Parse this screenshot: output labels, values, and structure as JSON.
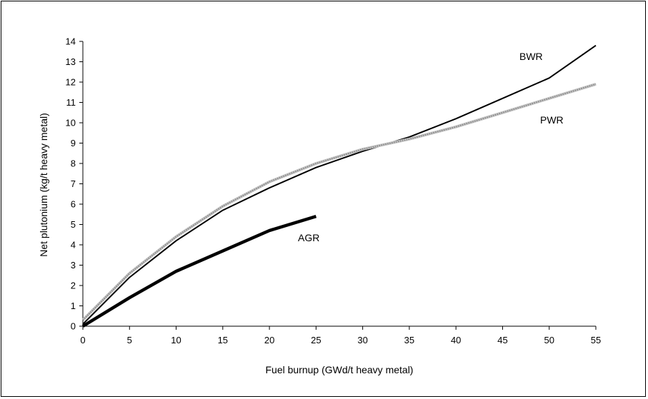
{
  "chart_data": {
    "type": "line",
    "xlabel": "Fuel burnup (GWd/t heavy metal)",
    "ylabel": "Net plutonium (kg/t heavy metal)",
    "xlim": [
      0,
      55
    ],
    "ylim": [
      0,
      14
    ],
    "xticks": [
      "0",
      "5",
      "10",
      "15",
      "20",
      "25",
      "30",
      "35",
      "40",
      "45",
      "50",
      "55"
    ],
    "yticks": [
      "0",
      "1",
      "2",
      "3",
      "4",
      "5",
      "6",
      "7",
      "8",
      "9",
      "10",
      "11",
      "12",
      "13",
      "14"
    ],
    "grid": false,
    "legend": "none",
    "series": [
      {
        "name": "BWR",
        "style": "solid",
        "color": "#000000",
        "x": [
          0,
          5,
          10,
          15,
          20,
          25,
          30,
          35,
          40,
          45,
          50,
          55
        ],
        "y": [
          0.1,
          2.4,
          4.2,
          5.7,
          6.8,
          7.8,
          8.6,
          9.3,
          10.2,
          11.2,
          12.2,
          13.8
        ]
      },
      {
        "name": "PWR",
        "style": "dotted",
        "color": "#888888",
        "x": [
          0,
          5,
          10,
          15,
          20,
          25,
          30,
          35,
          40,
          45,
          50,
          55
        ],
        "y": [
          0.3,
          2.6,
          4.4,
          5.9,
          7.1,
          8.0,
          8.7,
          9.2,
          9.8,
          10.5,
          11.2,
          11.9
        ]
      },
      {
        "name": "AGR",
        "style": "thick",
        "color": "#000000",
        "x": [
          0,
          5,
          10,
          15,
          20,
          25
        ],
        "y": [
          0.0,
          1.4,
          2.7,
          3.7,
          4.7,
          5.4
        ]
      }
    ]
  }
}
